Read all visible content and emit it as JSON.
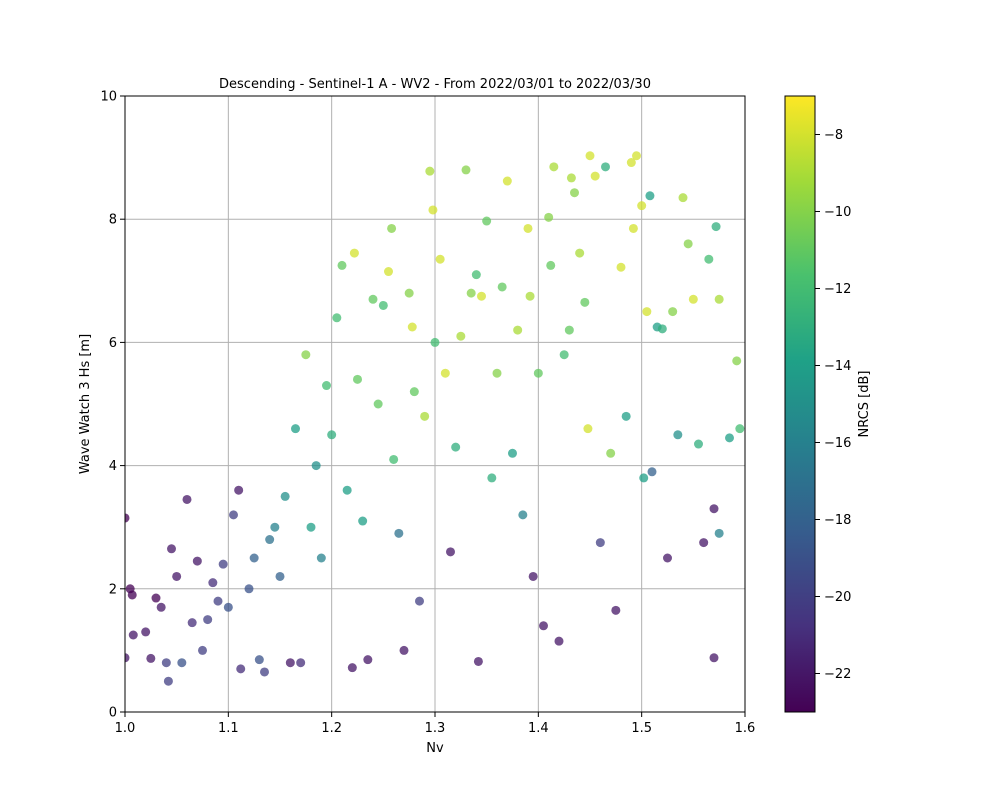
{
  "chart_data": {
    "type": "scatter",
    "title": "Descending - Sentinel-1 A - WV2 - From 2022/03/01 to 2022/03/30",
    "xlabel": "Nv",
    "ylabel": "Wave Watch 3 Hs [m]",
    "xlim": [
      1.0,
      1.6
    ],
    "ylim": [
      0,
      10
    ],
    "x_ticks": [
      "1.0",
      "1.1",
      "1.2",
      "1.3",
      "1.4",
      "1.5",
      "1.6"
    ],
    "y_ticks": [
      "0",
      "2",
      "4",
      "6",
      "8",
      "10"
    ],
    "grid": true,
    "colorbar": {
      "label": "NRCS [dB]",
      "range": [
        -23,
        -7
      ],
      "ticks": [
        "−8",
        "−10",
        "−12",
        "−14",
        "−16",
        "−18",
        "−20",
        "−22"
      ],
      "tick_values": [
        -8,
        -10,
        -12,
        -14,
        -16,
        -18,
        -20,
        -22
      ],
      "colormap": "viridis"
    },
    "points": [
      [
        1.0,
        3.15,
        -23
      ],
      [
        1.005,
        2.0,
        -23
      ],
      [
        1.007,
        1.9,
        -23
      ],
      [
        1.008,
        1.25,
        -22
      ],
      [
        1.0,
        0.88,
        -22
      ],
      [
        1.02,
        1.3,
        -22
      ],
      [
        1.025,
        0.87,
        -22
      ],
      [
        1.03,
        1.85,
        -23
      ],
      [
        1.035,
        1.7,
        -22
      ],
      [
        1.04,
        0.8,
        -20
      ],
      [
        1.045,
        2.65,
        -22
      ],
      [
        1.05,
        2.2,
        -22
      ],
      [
        1.06,
        3.45,
        -22
      ],
      [
        1.042,
        0.5,
        -20
      ],
      [
        1.055,
        0.8,
        -19
      ],
      [
        1.065,
        1.45,
        -21
      ],
      [
        1.07,
        2.45,
        -22
      ],
      [
        1.075,
        1.0,
        -20
      ],
      [
        1.08,
        1.5,
        -20
      ],
      [
        1.085,
        2.1,
        -21
      ],
      [
        1.09,
        1.8,
        -20
      ],
      [
        1.095,
        2.4,
        -20
      ],
      [
        1.1,
        1.7,
        -19
      ],
      [
        1.105,
        3.2,
        -20
      ],
      [
        1.11,
        3.6,
        -22
      ],
      [
        1.112,
        0.7,
        -21
      ],
      [
        1.12,
        2.0,
        -19
      ],
      [
        1.125,
        2.5,
        -18
      ],
      [
        1.13,
        0.85,
        -19
      ],
      [
        1.135,
        0.65,
        -20
      ],
      [
        1.14,
        2.8,
        -17
      ],
      [
        1.145,
        3.0,
        -16
      ],
      [
        1.15,
        2.2,
        -18
      ],
      [
        1.155,
        3.5,
        -15
      ],
      [
        1.16,
        0.8,
        -22
      ],
      [
        1.165,
        4.6,
        -14
      ],
      [
        1.17,
        0.8,
        -21
      ],
      [
        1.175,
        5.8,
        -10
      ],
      [
        1.18,
        3.0,
        -14
      ],
      [
        1.185,
        4.0,
        -15
      ],
      [
        1.19,
        2.5,
        -16
      ],
      [
        1.195,
        5.3,
        -12
      ],
      [
        1.2,
        4.5,
        -13
      ],
      [
        1.205,
        6.4,
        -12
      ],
      [
        1.21,
        7.25,
        -11
      ],
      [
        1.215,
        3.6,
        -14
      ],
      [
        1.22,
        0.72,
        -22
      ],
      [
        1.222,
        7.45,
        -8
      ],
      [
        1.225,
        5.4,
        -11
      ],
      [
        1.23,
        3.1,
        -14
      ],
      [
        1.235,
        0.85,
        -22
      ],
      [
        1.24,
        6.7,
        -11
      ],
      [
        1.245,
        5.0,
        -11
      ],
      [
        1.25,
        6.6,
        -12
      ],
      [
        1.255,
        7.15,
        -8
      ],
      [
        1.258,
        7.85,
        -10
      ],
      [
        1.26,
        4.1,
        -12
      ],
      [
        1.265,
        2.9,
        -17
      ],
      [
        1.27,
        1.0,
        -22
      ],
      [
        1.275,
        6.8,
        -10
      ],
      [
        1.278,
        6.25,
        -8
      ],
      [
        1.28,
        5.2,
        -11
      ],
      [
        1.285,
        1.8,
        -20
      ],
      [
        1.29,
        4.8,
        -9
      ],
      [
        1.295,
        8.78,
        -9
      ],
      [
        1.298,
        8.15,
        -8
      ],
      [
        1.3,
        6.0,
        -12
      ],
      [
        1.305,
        7.35,
        -8
      ],
      [
        1.31,
        5.5,
        -8
      ],
      [
        1.315,
        2.6,
        -22
      ],
      [
        1.32,
        4.3,
        -13
      ],
      [
        1.325,
        6.1,
        -9
      ],
      [
        1.33,
        8.8,
        -10
      ],
      [
        1.335,
        6.8,
        -10
      ],
      [
        1.34,
        7.1,
        -12
      ],
      [
        1.342,
        0.82,
        -22
      ],
      [
        1.345,
        6.75,
        -8
      ],
      [
        1.35,
        7.97,
        -11
      ],
      [
        1.355,
        3.8,
        -13
      ],
      [
        1.36,
        5.5,
        -10
      ],
      [
        1.365,
        6.9,
        -11
      ],
      [
        1.37,
        8.62,
        -8
      ],
      [
        1.375,
        4.2,
        -14
      ],
      [
        1.38,
        6.2,
        -9
      ],
      [
        1.385,
        3.2,
        -16
      ],
      [
        1.39,
        7.85,
        -8
      ],
      [
        1.392,
        6.75,
        -9
      ],
      [
        1.395,
        2.2,
        -22
      ],
      [
        1.4,
        5.5,
        -11
      ],
      [
        1.405,
        1.4,
        -22
      ],
      [
        1.41,
        8.03,
        -10
      ],
      [
        1.412,
        7.25,
        -11
      ],
      [
        1.415,
        8.85,
        -9
      ],
      [
        1.42,
        1.15,
        -22
      ],
      [
        1.425,
        5.8,
        -12
      ],
      [
        1.43,
        6.2,
        -11
      ],
      [
        1.432,
        8.67,
        -9
      ],
      [
        1.435,
        8.43,
        -10
      ],
      [
        1.44,
        7.45,
        -9
      ],
      [
        1.445,
        6.65,
        -11
      ],
      [
        1.448,
        4.6,
        -8
      ],
      [
        1.45,
        9.03,
        -8
      ],
      [
        1.455,
        8.7,
        -8
      ],
      [
        1.46,
        2.75,
        -20
      ],
      [
        1.465,
        8.85,
        -13
      ],
      [
        1.47,
        4.2,
        -10
      ],
      [
        1.475,
        1.65,
        -22
      ],
      [
        1.48,
        7.22,
        -8
      ],
      [
        1.485,
        4.8,
        -14
      ],
      [
        1.49,
        8.92,
        -8
      ],
      [
        1.492,
        7.85,
        -8
      ],
      [
        1.495,
        9.03,
        -8
      ],
      [
        1.5,
        8.22,
        -8
      ],
      [
        1.502,
        3.8,
        -14
      ],
      [
        1.505,
        6.5,
        -8
      ],
      [
        1.508,
        8.38,
        -14
      ],
      [
        1.51,
        3.9,
        -18
      ],
      [
        1.515,
        6.25,
        -14
      ],
      [
        1.52,
        6.22,
        -13
      ],
      [
        1.525,
        2.5,
        -22
      ],
      [
        1.53,
        6.5,
        -10
      ],
      [
        1.535,
        4.5,
        -15
      ],
      [
        1.54,
        8.35,
        -9
      ],
      [
        1.545,
        7.6,
        -10
      ],
      [
        1.55,
        6.7,
        -8
      ],
      [
        1.555,
        4.35,
        -13
      ],
      [
        1.56,
        2.75,
        -22
      ],
      [
        1.565,
        7.35,
        -12
      ],
      [
        1.57,
        0.88,
        -22
      ],
      [
        1.572,
        7.88,
        -13
      ],
      [
        1.575,
        6.7,
        -9
      ],
      [
        1.585,
        4.45,
        -14
      ],
      [
        1.592,
        5.7,
        -10
      ],
      [
        1.595,
        4.6,
        -12
      ],
      [
        1.57,
        3.3,
        -22
      ],
      [
        1.575,
        2.9,
        -16
      ]
    ]
  }
}
